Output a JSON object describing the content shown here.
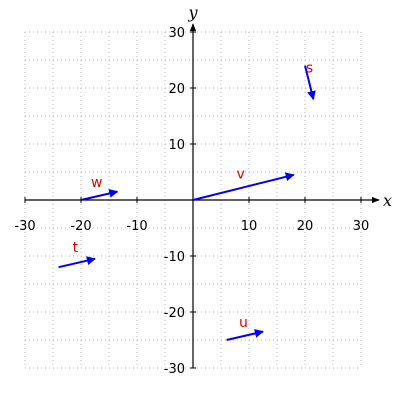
{
  "chart_data": {
    "type": "vector-field",
    "xlabel": "x",
    "ylabel": "y",
    "xlim": [
      -30,
      30
    ],
    "ylim": [
      -30,
      30
    ],
    "ticks": [
      -30,
      -20,
      -10,
      10,
      20,
      30
    ],
    "grid": true,
    "vector_color": "#0000ee",
    "label_color": "#e00000",
    "vectors": [
      {
        "name": "v",
        "tail": [
          0,
          0
        ],
        "head": [
          18,
          4.5
        ],
        "label_at": [
          8.5,
          3.8
        ]
      },
      {
        "name": "s",
        "tail": [
          20,
          24
        ],
        "head": [
          21.5,
          18
        ],
        "label_at": [
          20.8,
          22.8
        ]
      },
      {
        "name": "w",
        "tail": [
          -20,
          0
        ],
        "head": [
          -13.5,
          1.5
        ],
        "label_at": [
          -17.2,
          2.3
        ]
      },
      {
        "name": "t",
        "tail": [
          -24,
          -12
        ],
        "head": [
          -17.5,
          -10.5
        ],
        "label_at": [
          -21,
          -9.3
        ]
      },
      {
        "name": "u",
        "tail": [
          6,
          -25
        ],
        "head": [
          12.5,
          -23.5
        ],
        "label_at": [
          9,
          -22.7
        ]
      }
    ]
  }
}
